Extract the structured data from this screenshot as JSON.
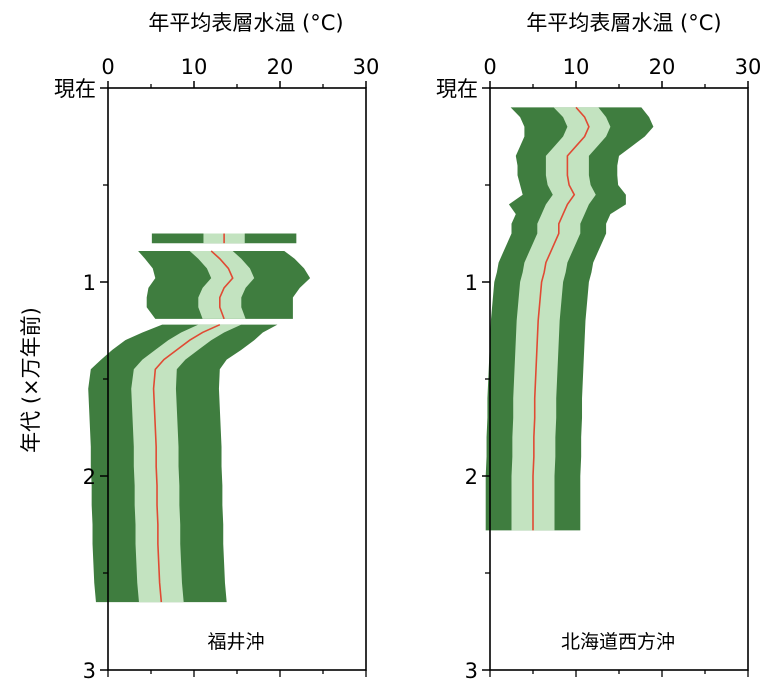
{
  "chart_data": {
    "type": "area",
    "shared_ylabel": "年代 (×万年前)",
    "panels": [
      {
        "title": "年平均表層水温 (°C)",
        "site_label": "福井沖",
        "xlim": [
          0,
          30
        ],
        "ylim": [
          0,
          3
        ],
        "x_ticks": [
          "0",
          "10",
          "20",
          "30"
        ],
        "y_ticks": [
          "現在",
          "1",
          "2",
          "3"
        ],
        "segments": [
          {
            "points": [
              [
                0.75,
                13.5,
                2.4,
                6.0
              ],
              [
                0.8,
                13.5,
                2.4,
                6.0
              ]
            ]
          },
          {
            "points": [
              [
                0.84,
                12.0,
                2.5,
                6.0
              ],
              [
                0.88,
                13.0,
                2.5,
                6.2
              ],
              [
                0.93,
                14.0,
                2.5,
                6.3
              ],
              [
                0.98,
                14.5,
                2.5,
                6.5
              ],
              [
                1.03,
                13.5,
                2.5,
                6.3
              ],
              [
                1.08,
                13.0,
                2.5,
                6.0
              ],
              [
                1.13,
                13.0,
                2.5,
                6.0
              ],
              [
                1.19,
                13.5,
                2.5,
                5.5
              ]
            ]
          },
          {
            "points": [
              [
                1.22,
                13.0,
                2.5,
                4.2
              ],
              [
                1.26,
                11.0,
                2.5,
                4.5
              ],
              [
                1.3,
                9.5,
                2.5,
                5.0
              ],
              [
                1.35,
                8.0,
                2.5,
                5.0
              ],
              [
                1.4,
                6.5,
                2.5,
                4.8
              ],
              [
                1.45,
                5.5,
                2.5,
                5.0
              ],
              [
                1.55,
                5.3,
                2.6,
                5.0
              ],
              [
                1.65,
                5.4,
                2.6,
                5.0
              ],
              [
                1.75,
                5.5,
                2.6,
                5.0
              ],
              [
                1.85,
                5.6,
                2.6,
                5.0
              ],
              [
                1.95,
                5.6,
                2.6,
                5.0
              ],
              [
                2.05,
                5.7,
                2.6,
                5.0
              ],
              [
                2.15,
                5.7,
                2.6,
                5.0
              ],
              [
                2.25,
                5.8,
                2.6,
                5.0
              ],
              [
                2.35,
                5.8,
                2.6,
                5.0
              ],
              [
                2.45,
                5.9,
                2.6,
                5.0
              ],
              [
                2.55,
                6.0,
                2.6,
                5.0
              ],
              [
                2.65,
                6.2,
                2.6,
                5.0
              ]
            ]
          }
        ]
      },
      {
        "title": "年平均表層水温 (°C)",
        "site_label": "北海道西方沖",
        "xlim": [
          0,
          30
        ],
        "ylim": [
          0,
          3
        ],
        "x_ticks": [
          "0",
          "10",
          "20",
          "30"
        ],
        "y_ticks": [
          "現在",
          "1",
          "2",
          "3"
        ],
        "segments": [
          {
            "points": [
              [
                0.1,
                10.0,
                2.6,
                5.0
              ],
              [
                0.15,
                11.0,
                2.5,
                5.0
              ],
              [
                0.2,
                11.5,
                2.5,
                5.0
              ],
              [
                0.25,
                11.0,
                2.5,
                4.5
              ],
              [
                0.3,
                10.0,
                2.5,
                4.0
              ],
              [
                0.35,
                9.0,
                2.5,
                3.5
              ],
              [
                0.4,
                9.0,
                2.5,
                3.3
              ],
              [
                0.45,
                9.0,
                2.5,
                3.3
              ],
              [
                0.5,
                9.2,
                2.5,
                3.2
              ],
              [
                0.55,
                9.8,
                2.5,
                3.5
              ],
              [
                0.6,
                9.0,
                2.5,
                4.3
              ],
              [
                0.65,
                8.5,
                2.5,
                3.0
              ],
              [
                0.7,
                8.0,
                2.5,
                3.0
              ],
              [
                0.75,
                8.0,
                2.5,
                3.0
              ],
              [
                0.8,
                7.5,
                2.5,
                3.0
              ],
              [
                0.85,
                7.0,
                2.5,
                3.0
              ],
              [
                0.9,
                6.5,
                2.5,
                3.0
              ],
              [
                0.95,
                6.3,
                2.5,
                3.0
              ],
              [
                1.0,
                6.0,
                2.5,
                3.0
              ],
              [
                1.1,
                5.8,
                2.5,
                3.0
              ],
              [
                1.2,
                5.6,
                2.5,
                3.0
              ],
              [
                1.3,
                5.5,
                2.5,
                3.0
              ],
              [
                1.4,
                5.4,
                2.5,
                3.0
              ],
              [
                1.5,
                5.3,
                2.5,
                3.0
              ],
              [
                1.6,
                5.2,
                2.5,
                3.0
              ],
              [
                1.7,
                5.2,
                2.5,
                3.0
              ],
              [
                1.8,
                5.1,
                2.5,
                3.0
              ],
              [
                1.9,
                5.1,
                2.5,
                3.0
              ],
              [
                2.0,
                5.0,
                2.5,
                3.0
              ],
              [
                2.1,
                5.0,
                2.5,
                3.0
              ],
              [
                2.2,
                5.0,
                2.5,
                3.0
              ],
              [
                2.28,
                5.0,
                2.5,
                3.0
              ]
            ]
          }
        ]
      }
    ],
    "colors": {
      "outer_band": "#3f7d3f",
      "inner_band": "#c3e3c0",
      "median": "#e04a33",
      "axis": "#000000"
    }
  }
}
